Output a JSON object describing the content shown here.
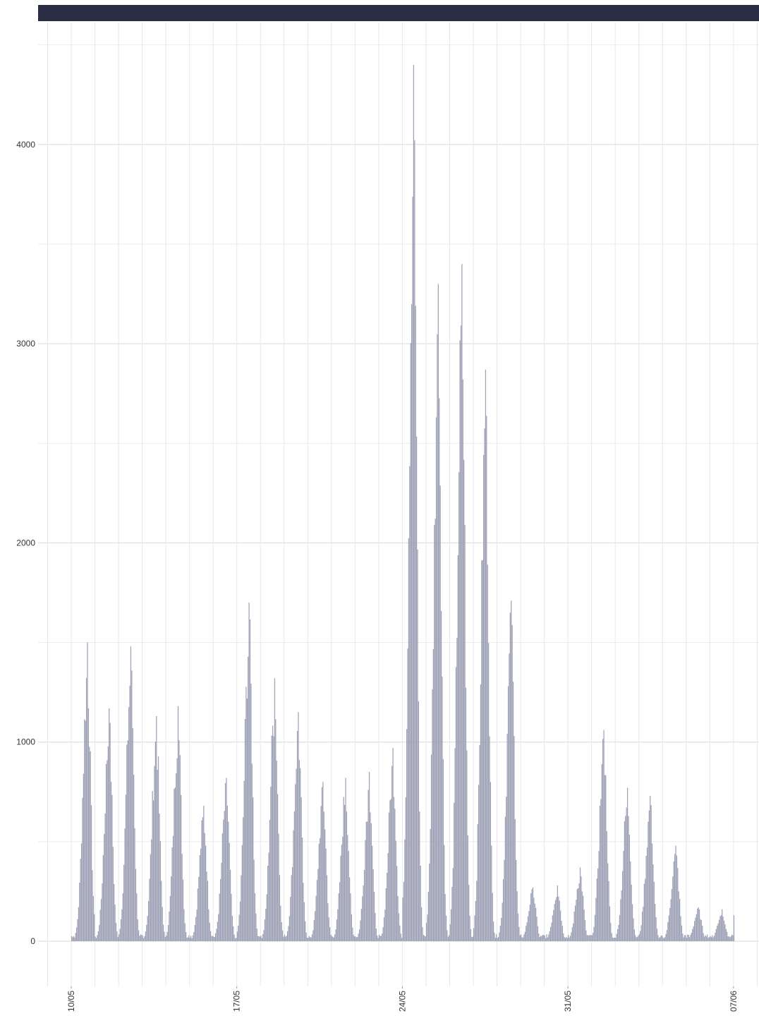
{
  "header": {
    "bar_color": "#2b2d45"
  },
  "chart_data": {
    "type": "bar",
    "title": "",
    "xlabel": "",
    "ylabel": "",
    "bar_color": "#9a9db2",
    "grid": true,
    "legend": "none",
    "y_ticks": [
      "0",
      "1000",
      "2000",
      "3000",
      "4000"
    ],
    "x_ticks": [
      "10/05",
      "17/05",
      "24/05",
      "31/05",
      "07/06"
    ],
    "x_range": [
      "10/05",
      "07/06"
    ],
    "ylim": [
      -200,
      4550
    ],
    "days": [
      {
        "date": "10/05",
        "peak": 1500,
        "peak_hour": 16
      },
      {
        "date": "11/05",
        "peak": 1170,
        "peak_hour": 14
      },
      {
        "date": "12/05",
        "peak": 1480,
        "peak_hour": 12
      },
      {
        "date": "13/05",
        "peak": 1130,
        "peak_hour": 14
      },
      {
        "date": "14/05",
        "peak": 1180,
        "peak_hour": 12
      },
      {
        "date": "15/05",
        "peak": 680,
        "peak_hour": 14
      },
      {
        "date": "16/05",
        "peak": 820,
        "peak_hour": 13
      },
      {
        "date": "17/05",
        "peak": 1700,
        "peak_hour": 12
      },
      {
        "date": "18/05",
        "peak": 1320,
        "peak_hour": 14
      },
      {
        "date": "19/05",
        "peak": 1150,
        "peak_hour": 14
      },
      {
        "date": "20/05",
        "peak": 800,
        "peak_hour": 15
      },
      {
        "date": "21/05",
        "peak": 820,
        "peak_hour": 14
      },
      {
        "date": "22/05",
        "peak": 850,
        "peak_hour": 14
      },
      {
        "date": "23/05",
        "peak": 970,
        "peak_hour": 14
      },
      {
        "date": "24/05",
        "peak": 4400,
        "peak_hour": 11
      },
      {
        "date": "25/05",
        "peak": 3300,
        "peak_hour": 12
      },
      {
        "date": "26/05",
        "peak": 3400,
        "peak_hour": 12
      },
      {
        "date": "27/05",
        "peak": 2870,
        "peak_hour": 12
      },
      {
        "date": "28/05",
        "peak": 1710,
        "peak_hour": 14
      },
      {
        "date": "29/05",
        "peak": 270,
        "peak_hour": 12
      },
      {
        "date": "30/05",
        "peak": 280,
        "peak_hour": 13
      },
      {
        "date": "31/05",
        "peak": 370,
        "peak_hour": 12
      },
      {
        "date": "01/06",
        "peak": 1060,
        "peak_hour": 12
      },
      {
        "date": "02/06",
        "peak": 770,
        "peak_hour": 12
      },
      {
        "date": "03/06",
        "peak": 730,
        "peak_hour": 11
      },
      {
        "date": "04/06",
        "peak": 480,
        "peak_hour": 13
      },
      {
        "date": "05/06",
        "peak": 170,
        "peak_hour": 12
      },
      {
        "date": "06/06",
        "peak": 160,
        "peak_hour": 12
      },
      {
        "date": "07/06",
        "peak": 130,
        "peak_hour": 0
      }
    ]
  }
}
